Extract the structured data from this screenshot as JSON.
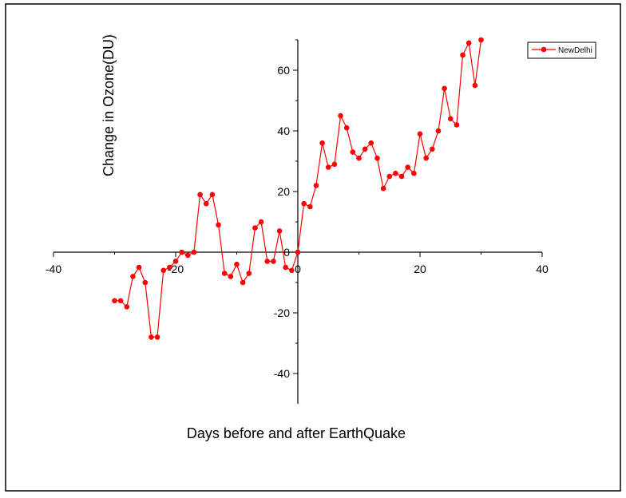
{
  "chart_data": {
    "type": "line",
    "xlabel": "Days before and after EarthQuake",
    "ylabel": "Change in Ozone(DU)",
    "xlim": [
      -40,
      40
    ],
    "ylim": [
      -50,
      70
    ],
    "x_ticks": [
      -40,
      -20,
      0,
      20,
      40
    ],
    "y_ticks": [
      -40,
      -20,
      0,
      20,
      40,
      60
    ],
    "grid": false,
    "legend_position": "top-right",
    "series": [
      {
        "name": "NewDelhi",
        "color": "#ff0000",
        "x": [
          -30,
          -29,
          -28,
          -27,
          -26,
          -25,
          -24,
          -23,
          -22,
          -21,
          -20,
          -19,
          -18,
          -17,
          -16,
          -15,
          -14,
          -13,
          -12,
          -11,
          -10,
          -9,
          -8,
          -7,
          -6,
          -5,
          -4,
          -3,
          -2,
          -1,
          0,
          1,
          2,
          3,
          4,
          5,
          6,
          7,
          8,
          9,
          10,
          11,
          12,
          13,
          14,
          15,
          16,
          17,
          18,
          19,
          20,
          21,
          22,
          23,
          24,
          25,
          26,
          27,
          28,
          29,
          30
        ],
        "values": [
          -16,
          -16,
          -18,
          -8,
          -5,
          -10,
          -28,
          -28,
          -6,
          -5,
          -3,
          0,
          -1,
          0,
          19,
          16,
          19,
          9,
          -7,
          -8,
          -4,
          -10,
          -7,
          8,
          10,
          -3,
          -3,
          7,
          -5,
          -6,
          0,
          16,
          15,
          22,
          36,
          28,
          29,
          45,
          41,
          33,
          31,
          34,
          36,
          31,
          21,
          25,
          26,
          25,
          28,
          26,
          39,
          31,
          34,
          40,
          54,
          44,
          42,
          65,
          69,
          55,
          70
        ]
      }
    ]
  }
}
